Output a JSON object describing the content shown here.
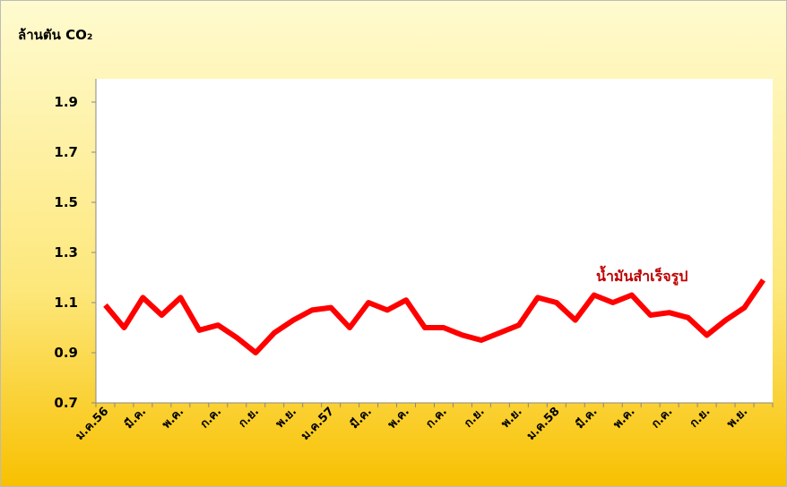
{
  "chart_data": {
    "type": "line",
    "y_label": "ล้านตัน CO₂",
    "categories": [
      "ม.ค.56",
      null,
      "มี.ค.",
      null,
      "พ.ค.",
      null,
      "ก.ค.",
      null,
      "ก.ย.",
      null,
      "พ.ย.",
      null,
      "ม.ค.57",
      null,
      "มี.ค.",
      null,
      "พ.ค.",
      null,
      "ก.ค.",
      null,
      "ก.ย.",
      null,
      "พ.ย.",
      null,
      "ม.ค.58",
      null,
      "มี.ค.",
      null,
      "พ.ค.",
      null,
      "ก.ค.",
      null,
      "ก.ย.",
      null,
      "พ.ย.",
      null
    ],
    "series": [
      {
        "name": "น้ำมันสำเร็จรูป",
        "color": "#ff0000",
        "label_color": "#c00000",
        "values": [
          1.09,
          1.0,
          1.12,
          1.05,
          1.12,
          0.99,
          1.01,
          0.96,
          0.9,
          0.98,
          1.03,
          1.07,
          1.08,
          1.0,
          1.1,
          1.07,
          1.11,
          1.0,
          1.0,
          0.97,
          0.95,
          0.98,
          1.01,
          1.12,
          1.1,
          1.03,
          1.13,
          1.1,
          1.13,
          1.05,
          1.06,
          1.04,
          0.97,
          1.03,
          1.08,
          1.19
        ]
      }
    ],
    "ylim": [
      0.7,
      2.0
    ],
    "yticks": [
      0.7,
      0.9,
      1.1,
      1.3,
      1.5,
      1.7,
      1.9
    ],
    "grid": false
  }
}
